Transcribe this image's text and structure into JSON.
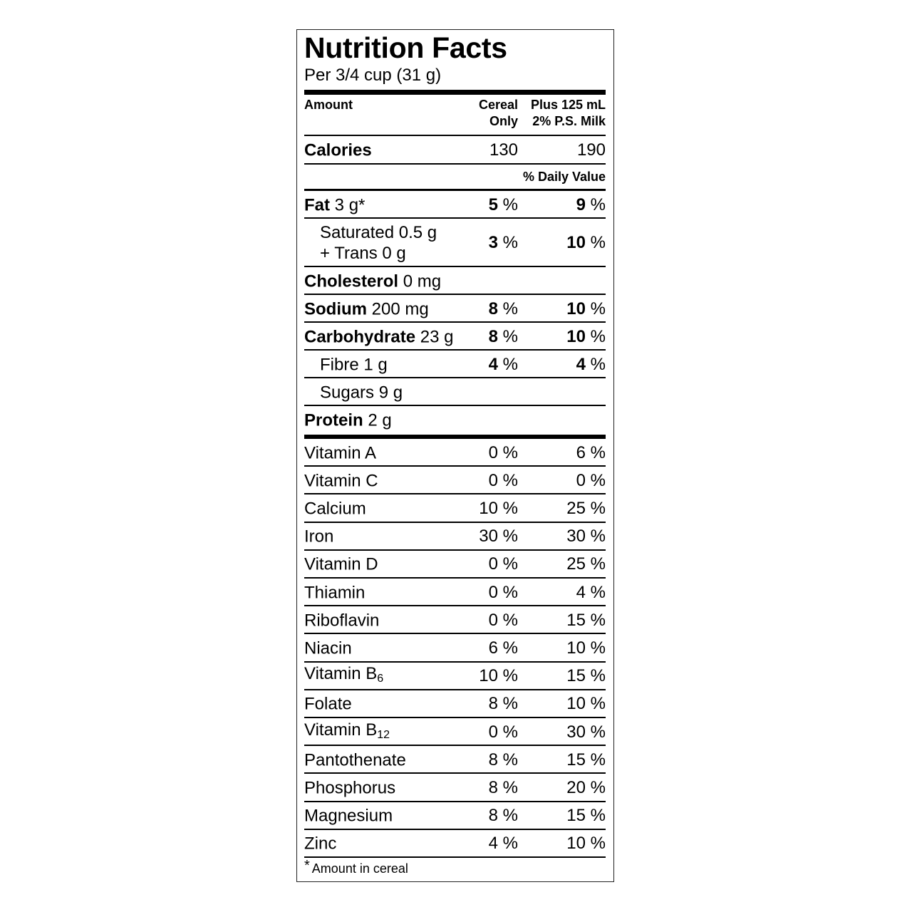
{
  "title": "Nutrition Facts",
  "serving": "Per 3/4 cup (31 g)",
  "header": {
    "amount": "Amount",
    "col1_line1": "Cereal",
    "col1_line2": "Only",
    "col2_line1": "Plus 125 mL",
    "col2_line2": "2% P.S. Milk"
  },
  "calories": {
    "label": "Calories",
    "cereal": "130",
    "with_milk": "190"
  },
  "daily_value_label": "% Daily Value",
  "nutrients": [
    {
      "name": "Fat",
      "amount": "3 g*",
      "cereal": "5",
      "with_milk": "9",
      "bold": true
    },
    {
      "name": "Saturated 0.5 g",
      "name2": "+ Trans 0 g",
      "cereal": "3",
      "with_milk": "10",
      "indent": true
    },
    {
      "name": "Cholesterol",
      "amount": "0 mg",
      "bold": true
    },
    {
      "name": "Sodium",
      "amount": "200 mg",
      "cereal": "8",
      "with_milk": "10",
      "bold": true
    },
    {
      "name": "Carbohydrate",
      "amount": "23 g",
      "cereal": "8",
      "with_milk": "10",
      "bold": true
    },
    {
      "name": "Fibre 1 g",
      "cereal": "4",
      "with_milk": "4",
      "indent": true
    },
    {
      "name": "Sugars 9 g",
      "indent": true
    },
    {
      "name": "Protein",
      "amount": "2 g",
      "bold": true
    }
  ],
  "percent_sign": " %",
  "vitamins": [
    {
      "name": "Vitamin A",
      "cereal": "0 %",
      "with_milk": "6 %"
    },
    {
      "name": "Vitamin C",
      "cereal": "0 %",
      "with_milk": "0 %"
    },
    {
      "name": "Calcium",
      "cereal": "10 %",
      "with_milk": "25 %"
    },
    {
      "name": "Iron",
      "cereal": "30 %",
      "with_milk": "30 %"
    },
    {
      "name": "Vitamin D",
      "cereal": "0 %",
      "with_milk": "25 %"
    },
    {
      "name": "Thiamin",
      "cereal": "0 %",
      "with_milk": "4 %"
    },
    {
      "name": "Riboflavin",
      "cereal": "0 %",
      "with_milk": "15 %"
    },
    {
      "name": "Niacin",
      "cereal": "6 %",
      "with_milk": "10 %"
    },
    {
      "name": "Vitamin B",
      "sub": "6",
      "cereal": "10 %",
      "with_milk": "15 %"
    },
    {
      "name": "Folate",
      "cereal": "8 %",
      "with_milk": "10 %"
    },
    {
      "name": "Vitamin B",
      "sub": "12",
      "cereal": "0 %",
      "with_milk": "30 %"
    },
    {
      "name": "Pantothenate",
      "cereal": "8 %",
      "with_milk": "15 %"
    },
    {
      "name": "Phosphorus",
      "cereal": "8 %",
      "with_milk": "20 %"
    },
    {
      "name": "Magnesium",
      "cereal": "8 %",
      "with_milk": "15 %"
    },
    {
      "name": "Zinc",
      "cereal": "4 %",
      "with_milk": "10 %"
    }
  ],
  "footnote": {
    "symbol": "*",
    "text": "Amount in cereal"
  }
}
